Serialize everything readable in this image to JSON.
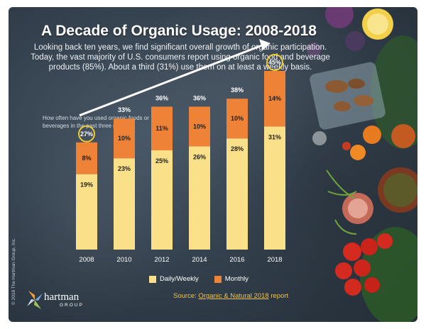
{
  "title": "A Decade of Organic Usage: 2008-2018",
  "intro": "Looking back ten years, we find significant overall growth of organic participation. Today, the vast majority of U.S. consumers report using organic food and beverage products (85%). About a third (31%) use them on at least a weekly basis.",
  "question": "How often have you used organic foods or beverages in the past three months?",
  "legend": {
    "daily": "Daily/Weekly",
    "monthly": "Monthly"
  },
  "source": {
    "prefix": "Source:",
    "link": "Organic & Natural 2018",
    "suffix": "report"
  },
  "logo": {
    "name": "hartman",
    "sub": "GROUP"
  },
  "copyright": "© 2018 The Hartman Group, Inc.",
  "colors": {
    "daily": "#FBE08A",
    "monthly": "#EE8236",
    "circle": "#F2CC2F",
    "accent": "#F3C24A"
  },
  "chart_data": {
    "type": "bar",
    "stacked": true,
    "categories": [
      "2008",
      "2010",
      "2012",
      "2014",
      "2016",
      "2018"
    ],
    "series": [
      {
        "name": "Daily/Weekly",
        "values": [
          19,
          23,
          25,
          26,
          28,
          31
        ]
      },
      {
        "name": "Monthly",
        "values": [
          8,
          10,
          11,
          10,
          10,
          14
        ]
      }
    ],
    "series_labels": [
      [
        "19%",
        "23%",
        "25%",
        "26%",
        "28%",
        "31%"
      ],
      [
        "8%",
        "10%",
        "11%",
        "10%",
        "10%",
        "14%"
      ]
    ],
    "totals": [
      "27%",
      "33%",
      "36%",
      "36%",
      "38%",
      "45%"
    ],
    "circled": [
      "2008",
      "2018"
    ],
    "trend_arrow": true,
    "ylim": [
      0,
      50
    ],
    "title": "How often have you used organic foods or beverages in the past three months?"
  }
}
